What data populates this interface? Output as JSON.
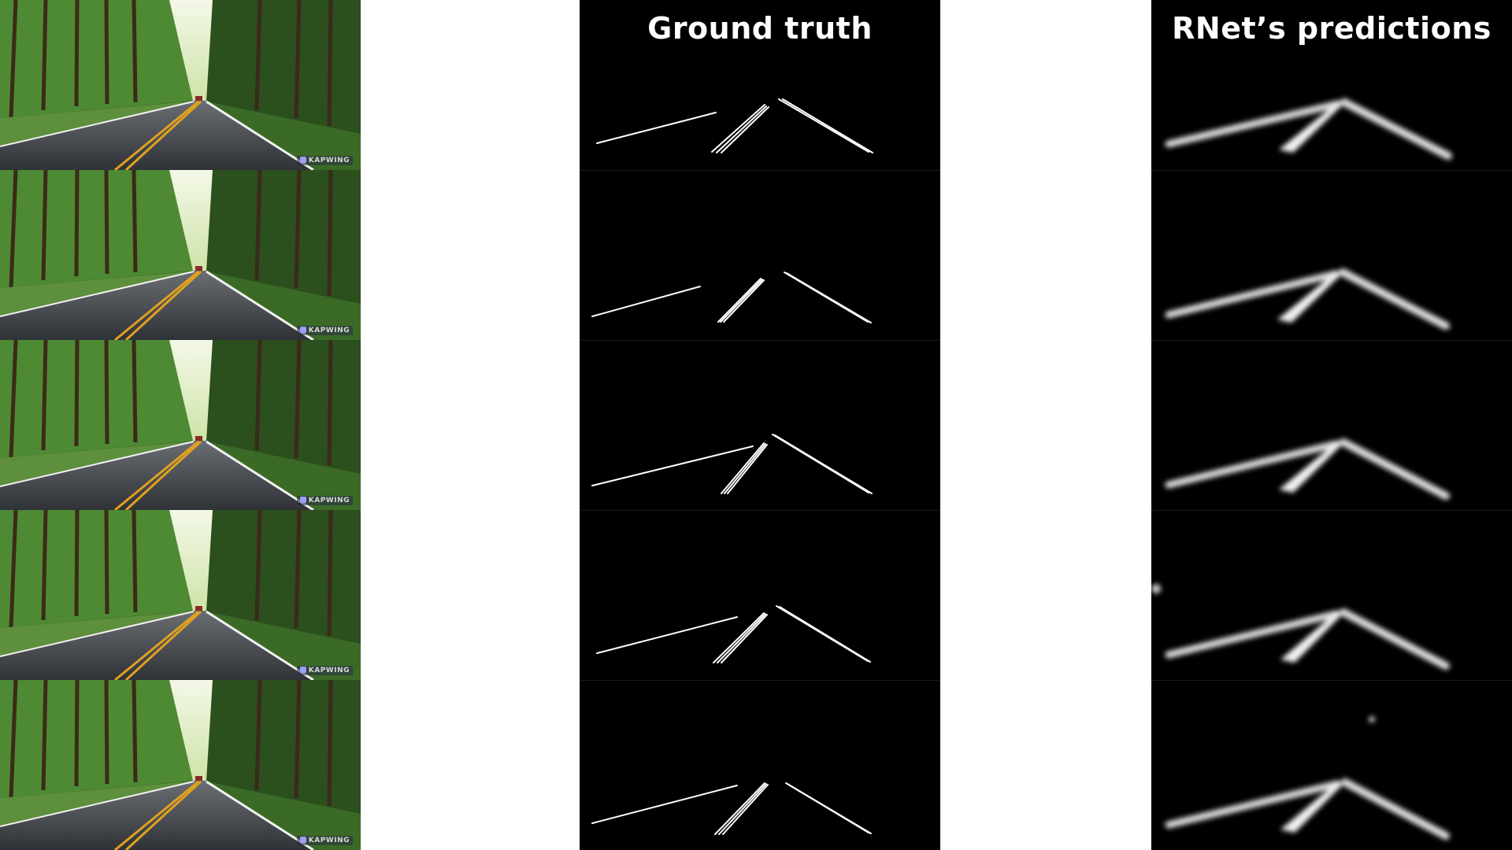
{
  "columns": {
    "ground_truth_title": "Ground truth",
    "predictions_title": "RNet’s predictions"
  },
  "watermark": "KAPWING",
  "frame_count": 5,
  "colors": {
    "mask_background": "#000000",
    "lane_line": "#ffffff",
    "road": "#3a3d42",
    "center_line": "#e0a020",
    "foliage": "#3f7a2e"
  }
}
